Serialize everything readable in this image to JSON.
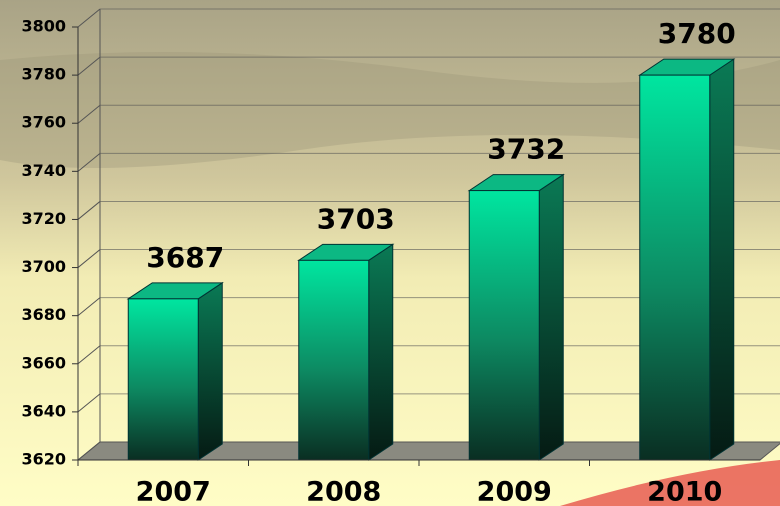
{
  "chart_data": {
    "type": "bar3d",
    "categories": [
      "2007",
      "2008",
      "2009",
      "2010"
    ],
    "values": [
      3687,
      3703,
      3732,
      3780
    ],
    "color": "#00e6a0",
    "ylim": [
      3620,
      3800
    ],
    "yticks": [
      3620,
      3640,
      3660,
      3680,
      3700,
      3720,
      3740,
      3760,
      3780,
      3800
    ],
    "grid": true
  }
}
